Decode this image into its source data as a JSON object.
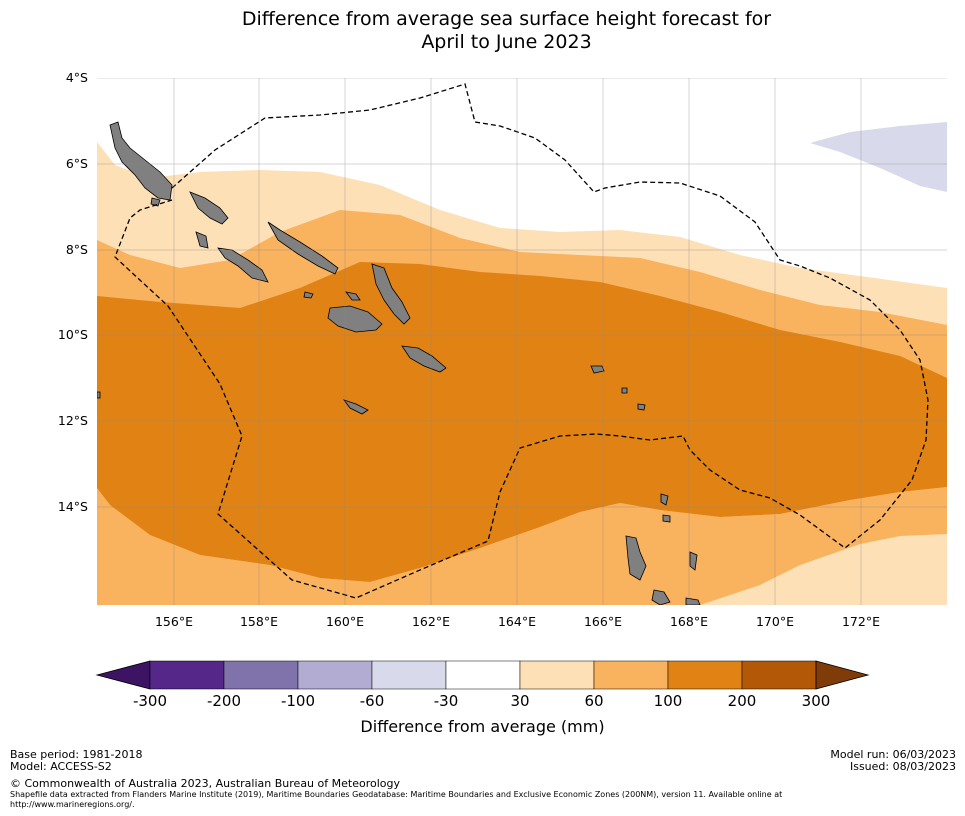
{
  "title": {
    "line1": "Difference from average sea surface height forecast for",
    "line2": "April to June 2023"
  },
  "map": {
    "lat_labels": [
      "4°S",
      "6°S",
      "8°S",
      "10°S",
      "12°S",
      "14°S"
    ],
    "lon_labels": [
      "156°E",
      "158°E",
      "160°E",
      "162°E",
      "164°E",
      "166°E",
      "168°E",
      "170°E",
      "172°E"
    ],
    "extent": {
      "lon_min": 154.2,
      "lon_max": 173.9,
      "lat_min": -16.0,
      "lat_max": -4.0
    },
    "land_color": "#808080",
    "boundary_style": "dashed"
  },
  "colorbar": {
    "ticks": [
      "-300",
      "-200",
      "-100",
      "-60",
      "-30",
      "30",
      "60",
      "100",
      "200",
      "300"
    ],
    "colors": [
      "#3d1363",
      "#542788",
      "#8073ac",
      "#b2abd2",
      "#d8daeb",
      "#ffffff",
      "#fee0b6",
      "#f9b25e",
      "#e08214",
      "#b35806",
      "#7f3b08"
    ],
    "label": "Difference from average (mm)"
  },
  "footer": {
    "base_period": "Base period: 1981-2018",
    "model": "Model: ACCESS-S2",
    "model_run": "Model run: 06/03/2023",
    "issued": "Issued: 08/03/2023",
    "copyright": "© Commonwealth of Australia 2023, Australian Bureau of Meteorology",
    "shapefile_line1": "Shapefile data extracted from Flanders Marine Institute (2019), Maritime Boundaries Geodatabase: Maritime Boundaries and Exclusive Economic Zones (200NM), version 11. Available online at",
    "shapefile_line2": "http://www.marineregions.org/."
  }
}
